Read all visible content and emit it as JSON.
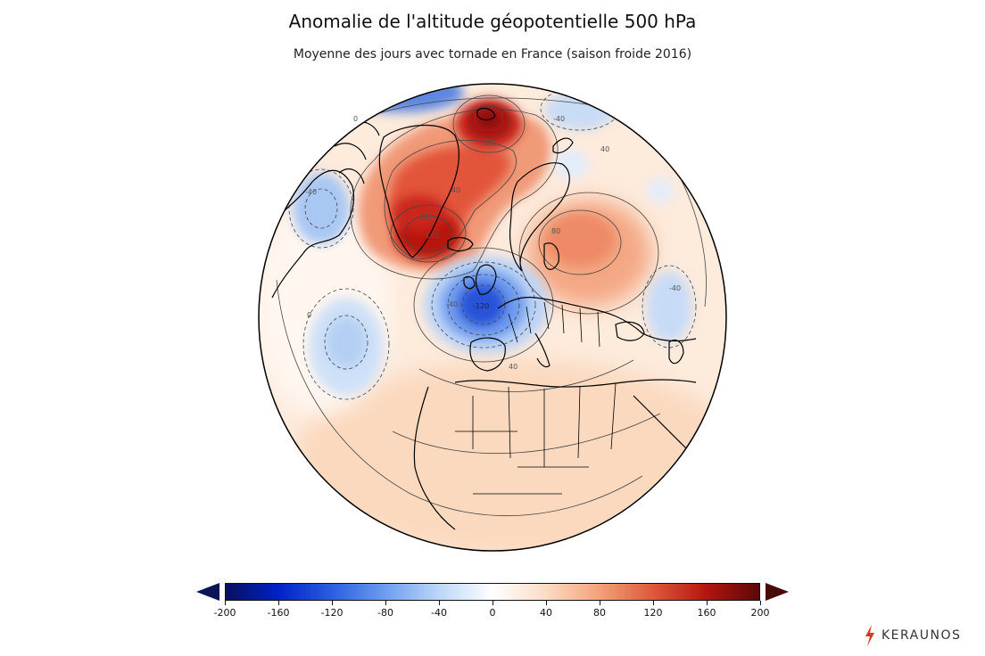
{
  "title": "Anomalie de l'altitude géopotentielle 500 hPa",
  "subtitle": "Moyenne des jours avec tornade en France (saison froide 2016)",
  "map": {
    "projection": "orthographic",
    "field_units": "m",
    "contour_labels": [
      "-40",
      "-40",
      "-40",
      "-120",
      "40",
      "40",
      "40",
      "80",
      "120",
      "160",
      "-120",
      "-40",
      "0",
      "0"
    ],
    "features": [
      {
        "name": "positive-anomaly-greenland",
        "type": "high",
        "level": 160
      },
      {
        "name": "positive-anomaly-norwegian-sea",
        "type": "high",
        "level": 200
      },
      {
        "name": "positive-anomaly-eastern-europe",
        "type": "high",
        "level": 80
      },
      {
        "name": "negative-anomaly-france",
        "type": "low",
        "level": -160
      },
      {
        "name": "negative-anomaly-labrador",
        "type": "low",
        "level": -80
      },
      {
        "name": "negative-anomaly-mid-atlantic",
        "type": "low",
        "level": -60
      },
      {
        "name": "negative-anomaly-scandinavia-north",
        "type": "low",
        "level": -60
      },
      {
        "name": "negative-anomaly-russia",
        "type": "low",
        "level": -60
      }
    ]
  },
  "colorbar": {
    "min": -200,
    "max": 200,
    "extend": "both",
    "ticks": [
      "-200",
      "-160",
      "-120",
      "-80",
      "-40",
      "0",
      "40",
      "80",
      "120",
      "160",
      "200"
    ],
    "colors": [
      "#08105e",
      "#0022c8",
      "#2a5fe0",
      "#6e9ef0",
      "#bcd7f8",
      "#ffffff",
      "#fbdcc4",
      "#f3a27a",
      "#dd5a3a",
      "#b5150f",
      "#5a0808"
    ]
  },
  "brand": {
    "name": "KERAUNOS",
    "accent": "#d63a1f"
  }
}
